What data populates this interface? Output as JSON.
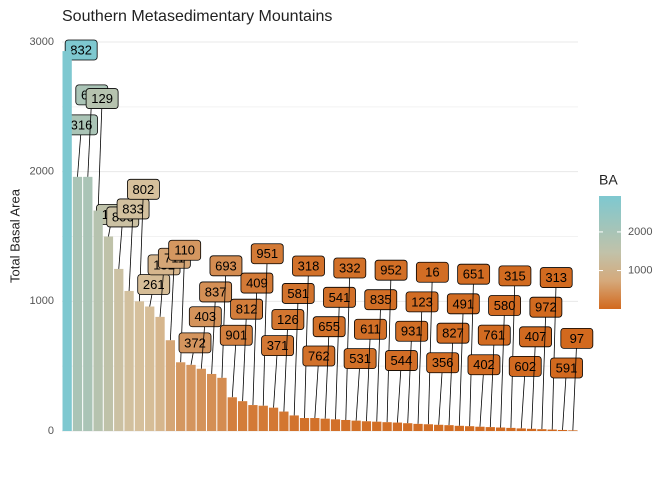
{
  "chart_data": {
    "type": "bar",
    "title": "Southern Metasedimentary Mountains",
    "y_label": "Total Basal Area",
    "legend_title": "BA",
    "categories": [
      "832",
      "316",
      "621",
      "129",
      "132",
      "806",
      "833",
      "802",
      "261",
      "131",
      "711",
      "110",
      "372",
      "403",
      "837",
      "693",
      "901",
      "812",
      "409",
      "951",
      "371",
      "126",
      "581",
      "318",
      "762",
      "655",
      "541",
      "332",
      "531",
      "611",
      "835",
      "952",
      "544",
      "931",
      "123",
      "16",
      "356",
      "827",
      "491",
      "651",
      "402",
      "761",
      "580",
      "315",
      "602",
      "407",
      "972",
      "313",
      "591",
      "97"
    ],
    "values": [
      2930,
      1960,
      1960,
      1700,
      1500,
      1250,
      1080,
      1000,
      960,
      880,
      700,
      530,
      510,
      480,
      440,
      410,
      260,
      230,
      200,
      195,
      180,
      150,
      120,
      100,
      100,
      95,
      90,
      85,
      80,
      75,
      72,
      68,
      65,
      60,
      55,
      52,
      48,
      45,
      40,
      37,
      33,
      30,
      27,
      24,
      20,
      17,
      14,
      11,
      8,
      5
    ],
    "ylim": [
      0,
      3000
    ],
    "yticks": [
      0,
      1000,
      2000,
      3000
    ],
    "grid": true,
    "color_scale": {
      "colors": [
        "#d2691e",
        "#d6c09c",
        "#7ec8d0"
      ],
      "midpoint": 1000
    },
    "legend_ticks": [
      1000,
      2000
    ]
  }
}
